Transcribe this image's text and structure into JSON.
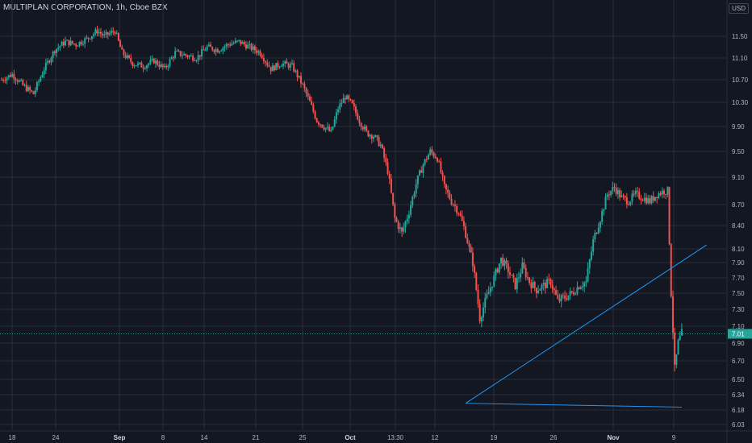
{
  "header": {
    "symbol_title": "MULTIPLAN CORPORATION, 1h, Cboe BZX",
    "currency": "USD"
  },
  "colors": {
    "background": "#131722",
    "grid": "#2a2e39",
    "up": "#26a69a",
    "down": "#ef5350",
    "trendline": "#2196f3",
    "last_price_bg": "#26a69a"
  },
  "chart_data": {
    "type": "candlestick",
    "title": "MULTIPLAN CORPORATION, 1h, Cboe BZX",
    "y_ticks": [
      "11.50",
      "11.10",
      "10.70",
      "10.30",
      "9.90",
      "9.50",
      "9.10",
      "8.70",
      "8.40",
      "8.10",
      "7.90",
      "7.70",
      "7.50",
      "7.30",
      "7.10",
      "6.90",
      "6.70",
      "6.50",
      "6.34",
      "6.18",
      "6.03"
    ],
    "x_ticks": [
      {
        "label": "18",
        "bold": false
      },
      {
        "label": "24",
        "bold": false
      },
      {
        "label": "Sep",
        "bold": true
      },
      {
        "label": "8",
        "bold": false
      },
      {
        "label": "14",
        "bold": false
      },
      {
        "label": "21",
        "bold": false
      },
      {
        "label": "25",
        "bold": false
      },
      {
        "label": "Oct",
        "bold": true
      },
      {
        "label": "13:30",
        "bold": false
      },
      {
        "label": "12",
        "bold": false
      },
      {
        "label": "19",
        "bold": false
      },
      {
        "label": "26",
        "bold": false
      },
      {
        "label": "Nov",
        "bold": true
      },
      {
        "label": "9",
        "bold": false
      }
    ],
    "last_price": "7.01",
    "price_path": [
      [
        0,
        10.7
      ],
      [
        3,
        10.8
      ],
      [
        6,
        10.6
      ],
      [
        9,
        10.45
      ],
      [
        12,
        10.9
      ],
      [
        15,
        11.25
      ],
      [
        18,
        11.4
      ],
      [
        21,
        11.35
      ],
      [
        24,
        11.45
      ],
      [
        27,
        11.6
      ],
      [
        29,
        11.5
      ],
      [
        32,
        11.6
      ],
      [
        34,
        11.2
      ],
      [
        37,
        11.0
      ],
      [
        40,
        10.95
      ],
      [
        43,
        11.05
      ],
      [
        46,
        10.9
      ],
      [
        49,
        11.2
      ],
      [
        52,
        11.15
      ],
      [
        55,
        11.1
      ],
      [
        58,
        11.3
      ],
      [
        61,
        11.25
      ],
      [
        64,
        11.35
      ],
      [
        67,
        11.4
      ],
      [
        70,
        11.3
      ],
      [
        73,
        11.2
      ],
      [
        76,
        10.9
      ],
      [
        79,
        11.0
      ],
      [
        82,
        10.95
      ],
      [
        85,
        10.6
      ],
      [
        87,
        10.3
      ],
      [
        89,
        10.0
      ],
      [
        91,
        9.9
      ],
      [
        93,
        9.8
      ],
      [
        95,
        10.2
      ],
      [
        97,
        10.4
      ],
      [
        99,
        10.25
      ],
      [
        101,
        10.0
      ],
      [
        103,
        9.8
      ],
      [
        105,
        9.75
      ],
      [
        107,
        9.6
      ],
      [
        109,
        9.2
      ],
      [
        111,
        8.5
      ],
      [
        113,
        8.3
      ],
      [
        115,
        8.6
      ],
      [
        117,
        9.0
      ],
      [
        119,
        9.3
      ],
      [
        121,
        9.5
      ],
      [
        123,
        9.4
      ],
      [
        125,
        8.95
      ],
      [
        127,
        8.75
      ],
      [
        129,
        8.6
      ],
      [
        131,
        8.3
      ],
      [
        133,
        7.9
      ],
      [
        135,
        7.2
      ],
      [
        137,
        7.45
      ],
      [
        139,
        7.7
      ],
      [
        141,
        7.95
      ],
      [
        143,
        7.8
      ],
      [
        145,
        7.6
      ],
      [
        147,
        7.85
      ],
      [
        149,
        7.65
      ],
      [
        151,
        7.55
      ],
      [
        153,
        7.6
      ],
      [
        155,
        7.65
      ],
      [
        157,
        7.4
      ],
      [
        159,
        7.45
      ],
      [
        161,
        7.5
      ],
      [
        163,
        7.6
      ],
      [
        165,
        7.65
      ],
      [
        167,
        8.2
      ],
      [
        169,
        8.5
      ],
      [
        171,
        8.85
      ],
      [
        173,
        8.95
      ],
      [
        175,
        8.8
      ],
      [
        177,
        8.75
      ],
      [
        179,
        8.85
      ],
      [
        181,
        8.8
      ],
      [
        183,
        8.75
      ],
      [
        185,
        8.85
      ],
      [
        187,
        8.9
      ],
      [
        188,
        8.9
      ],
      [
        189,
        7.5
      ],
      [
        190,
        6.6
      ],
      [
        191,
        6.9
      ],
      [
        192,
        7.01
      ]
    ],
    "trendlines": [
      {
        "x1": 131,
        "y1": 6.25,
        "x2": 192,
        "y2": 6.21
      },
      {
        "x1": 131,
        "y1": 6.25,
        "x2": 199,
        "y2": 8.15
      }
    ]
  }
}
